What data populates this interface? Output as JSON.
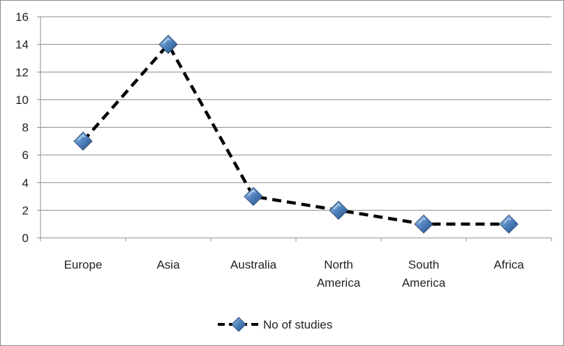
{
  "chart_data": {
    "type": "line",
    "categories": [
      "Europe",
      "Asia",
      "Australia",
      "North America",
      "South America",
      "Africa"
    ],
    "category_lines": [
      [
        "Europe"
      ],
      [
        "Asia"
      ],
      [
        "Australia"
      ],
      [
        "North",
        "America"
      ],
      [
        "South",
        "America"
      ],
      [
        "Africa"
      ]
    ],
    "series": [
      {
        "name": "No of studies",
        "values": [
          7,
          14,
          3,
          2,
          1,
          1
        ],
        "color": "#000000",
        "marker": "diamond",
        "marker_color": "#4f81bd",
        "line_style": "dashed"
      }
    ],
    "yticks": [
      0,
      2,
      4,
      6,
      8,
      10,
      12,
      14,
      16
    ],
    "ylim": [
      0,
      16
    ],
    "grid": true,
    "legend": "bottom",
    "title": "",
    "xlabel": "",
    "ylabel": ""
  },
  "legend": {
    "label": "No of studies"
  }
}
